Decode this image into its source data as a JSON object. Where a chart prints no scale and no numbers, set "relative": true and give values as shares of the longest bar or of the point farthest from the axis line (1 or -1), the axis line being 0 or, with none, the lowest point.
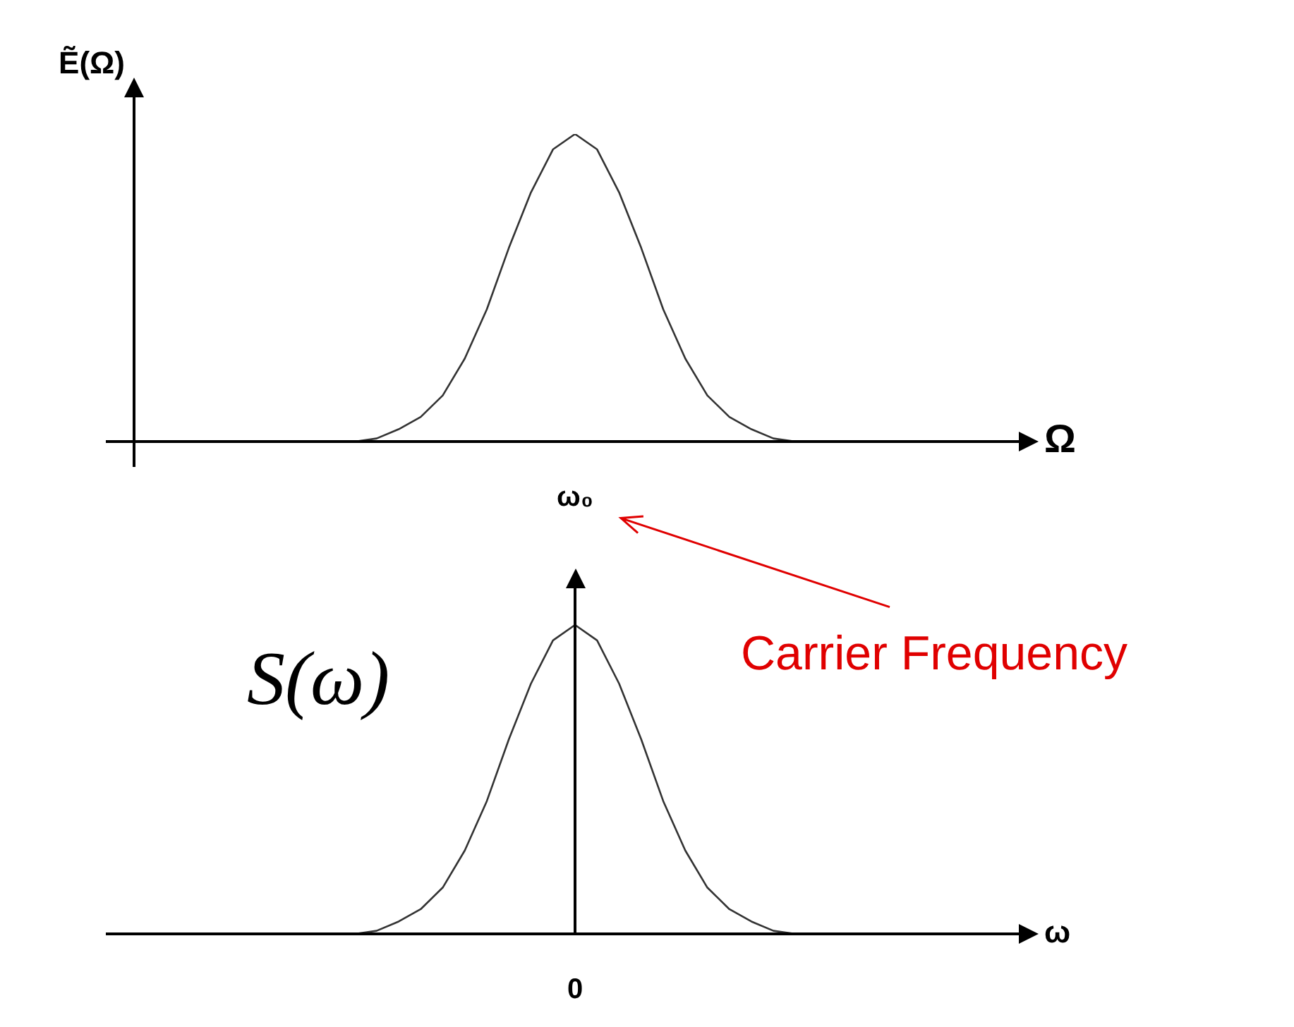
{
  "chart_data": [
    {
      "type": "line",
      "relative": true,
      "ylabel": "Ẽ(Ω)",
      "xlabel": "Ω",
      "categories": [
        null,
        null,
        null,
        null,
        null,
        null,
        null,
        null,
        null,
        null,
        null,
        null,
        null,
        null,
        null,
        null,
        null,
        null,
        null,
        null,
        null,
        null,
        null,
        null,
        null,
        null,
        null,
        null,
        null,
        null,
        null,
        null,
        null,
        null,
        null,
        null,
        null,
        null,
        null,
        null,
        null
      ],
      "series": [
        {
          "color": "#333333",
          "values": [
            0,
            0,
            0,
            0,
            0,
            0,
            0,
            0,
            0,
            0,
            0,
            0.01,
            0.04,
            0.08,
            0.15,
            0.27,
            0.43,
            0.63,
            0.81,
            0.95,
            1,
            0.95,
            0.81,
            0.63,
            0.43,
            0.27,
            0.15,
            0.08,
            0.04,
            0.01,
            0,
            0,
            0,
            0,
            0,
            0,
            0,
            0,
            0,
            0,
            0
          ]
        }
      ],
      "annotations": [
        "ω₀",
        "Carrier Frequency"
      ],
      "grid": false,
      "legend": false,
      "marker": "none",
      "line_style": "solid"
    },
    {
      "type": "line",
      "relative": true,
      "ylabel": "S(ω)",
      "xlabel": "ω",
      "categories": [
        null,
        null,
        null,
        null,
        null,
        null,
        null,
        null,
        null,
        null,
        null,
        null,
        null,
        null,
        null,
        null,
        null,
        null,
        null,
        null,
        null,
        null,
        null,
        null,
        null,
        null,
        null,
        null,
        null,
        null,
        null,
        null,
        null,
        null,
        null,
        null,
        null,
        null,
        null,
        null,
        null
      ],
      "series": [
        {
          "color": "#333333",
          "values": [
            0,
            0,
            0,
            0,
            0,
            0,
            0,
            0,
            0,
            0,
            0,
            0.01,
            0.04,
            0.08,
            0.15,
            0.27,
            0.43,
            0.63,
            0.81,
            0.95,
            1,
            0.95,
            0.81,
            0.63,
            0.43,
            0.27,
            0.15,
            0.08,
            0.04,
            0.01,
            0,
            0,
            0,
            0,
            0,
            0,
            0,
            0,
            0,
            0,
            0
          ]
        }
      ],
      "annotations": [
        "0"
      ],
      "grid": false,
      "legend": false,
      "marker": "none",
      "line_style": "solid"
    }
  ]
}
